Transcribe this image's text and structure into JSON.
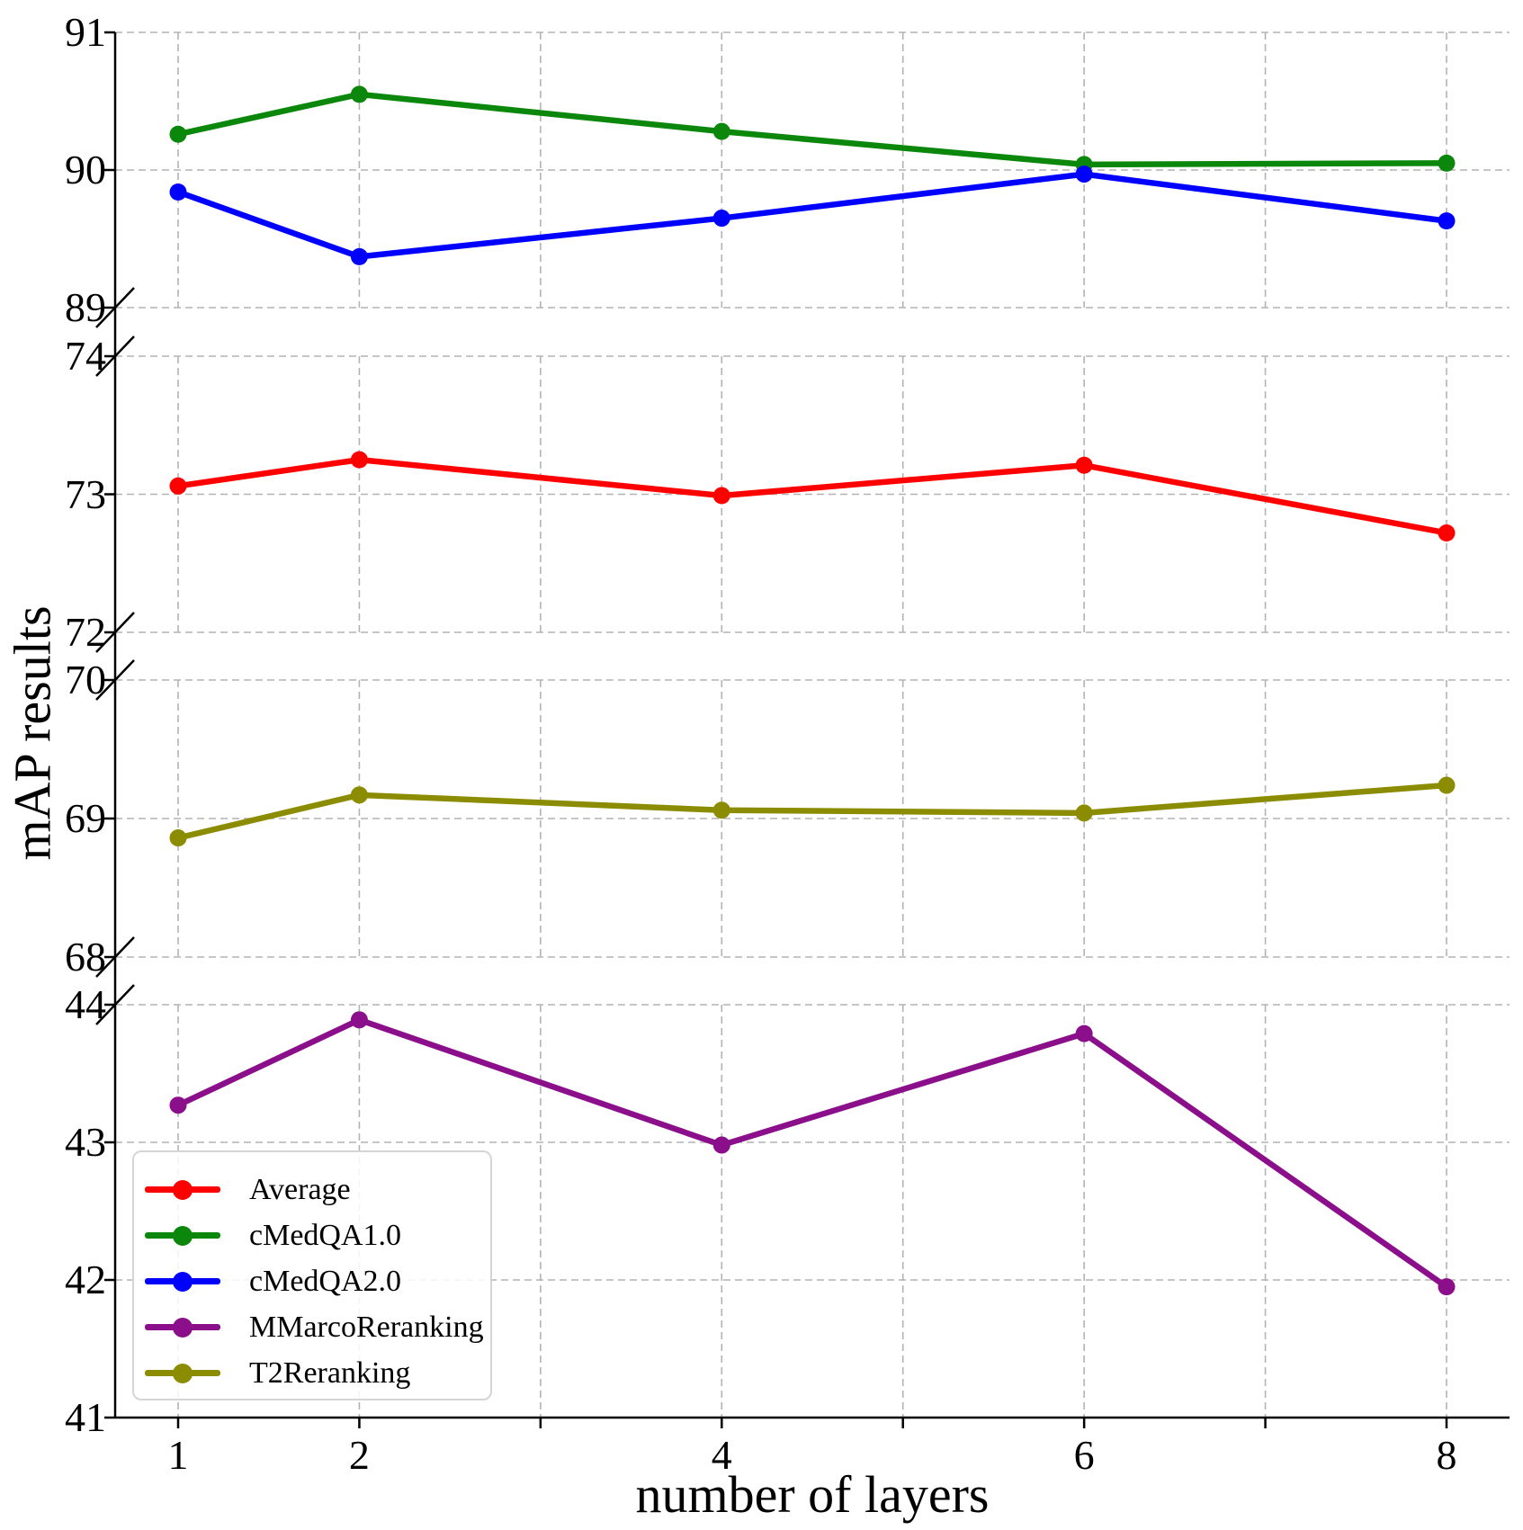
{
  "chart_data": {
    "type": "line",
    "title": "",
    "xlabel": "number of layers",
    "ylabel": "mAP results",
    "x": [
      1,
      2,
      4,
      6,
      8
    ],
    "x_tick_labels": [
      "1",
      "2",
      "4",
      "6",
      "8"
    ],
    "x_minor_ticks": [
      3,
      5,
      7
    ],
    "x_gridlines": [
      1,
      2,
      3,
      4,
      5,
      6,
      7,
      8
    ],
    "xlim": [
      0.65,
      8.35
    ],
    "grid": true,
    "axis_breaks": true,
    "legend_position": "lower-left",
    "panels": [
      {
        "ylim": [
          89,
          91
        ],
        "yticks": [
          89,
          90,
          91
        ]
      },
      {
        "ylim": [
          72,
          74
        ],
        "yticks": [
          72,
          73,
          74
        ]
      },
      {
        "ylim": [
          68,
          70
        ],
        "yticks": [
          68,
          69,
          70
        ]
      },
      {
        "ylim": [
          41,
          44
        ],
        "yticks": [
          41,
          42,
          43,
          44
        ]
      }
    ],
    "series": [
      {
        "name": "Average",
        "color": "#ff0000",
        "panel": 1,
        "values": [
          73.06,
          73.25,
          72.99,
          73.21,
          72.72
        ]
      },
      {
        "name": "cMedQA1.0",
        "color": "#0b870b",
        "panel": 0,
        "values": [
          90.26,
          90.55,
          90.28,
          90.04,
          90.05
        ]
      },
      {
        "name": "cMedQA2.0",
        "color": "#0000ff",
        "panel": 0,
        "values": [
          89.84,
          89.37,
          89.65,
          89.97,
          89.63
        ]
      },
      {
        "name": "MMarcoReranking",
        "color": "#8b0e8b",
        "panel": 3,
        "values": [
          43.27,
          43.89,
          42.98,
          43.79,
          41.95
        ]
      },
      {
        "name": "T2Reranking",
        "color": "#8c8c00",
        "panel": 2,
        "values": [
          68.86,
          69.17,
          69.06,
          69.04,
          69.24
        ]
      }
    ],
    "legend_labels": [
      "Average",
      "cMedQA1.0",
      "cMedQA2.0",
      "MMarcoReranking",
      "T2Reranking"
    ],
    "colors": {
      "grid": "#b3b3b3",
      "axis": "#000000",
      "text": "#000000",
      "legend_border": "#d5d5d5"
    }
  }
}
